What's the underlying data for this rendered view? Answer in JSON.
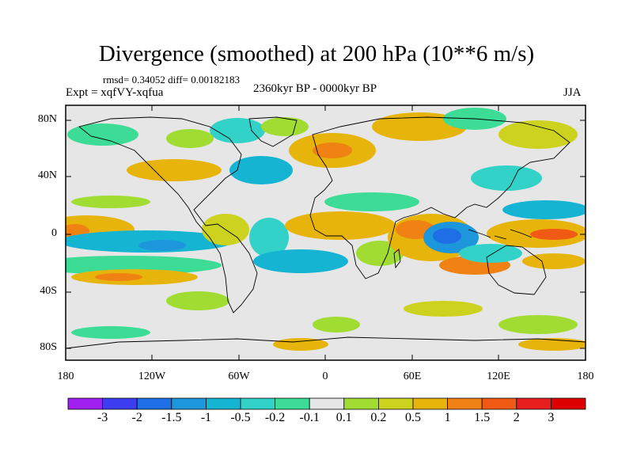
{
  "title": "Divergence (smoothed) at 200 hPa (10**6 m/s)",
  "stats": "rmsd= 0.34052 diff= 0.00182183",
  "experiment": "Expt = xqfVY-xqfua",
  "period": "2360kyr BP - 0000kyr BP",
  "season": "JJA",
  "axes": {
    "y_ticks": [
      "80N",
      "40N",
      "0",
      "40S",
      "80S"
    ],
    "x_ticks": [
      "180",
      "120W",
      "60W",
      "0",
      "60E",
      "120E",
      "180"
    ]
  },
  "colorbar": {
    "labels": [
      "-3",
      "-2",
      "-1.5",
      "-1",
      "-0.5",
      "-0.2",
      "-0.1",
      "0.1",
      "0.2",
      "0.5",
      "1",
      "1.5",
      "2",
      "3"
    ],
    "colors": [
      "#a020f0",
      "#3c3cf0",
      "#1e6ee6",
      "#1e96dc",
      "#14b4d2",
      "#32d2c8",
      "#3cdc96",
      "#e6e6e6",
      "#a0dc32",
      "#cdd21e",
      "#e6b40a",
      "#f08214",
      "#f05a14",
      "#e61e1e",
      "#dc0000"
    ]
  },
  "map_colors": {
    "neutral": "#e6e6e6",
    "land_outline": "#000000"
  }
}
